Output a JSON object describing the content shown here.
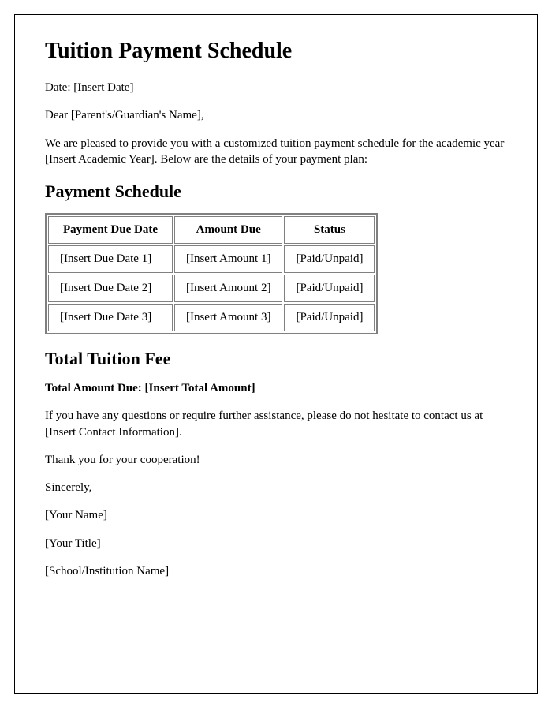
{
  "title": "Tuition Payment Schedule",
  "date_line": "Date: [Insert Date]",
  "salutation": "Dear [Parent's/Guardian's Name],",
  "intro": "We are pleased to provide you with a customized tuition payment schedule for the academic year [Insert Academic Year]. Below are the details of your payment plan:",
  "schedule_heading": "Payment Schedule",
  "table": {
    "columns": [
      "Payment Due Date",
      "Amount Due",
      "Status"
    ],
    "rows": [
      [
        "[Insert Due Date 1]",
        "[Insert Amount 1]",
        "[Paid/Unpaid]"
      ],
      [
        "[Insert Due Date 2]",
        "[Insert Amount 2]",
        "[Paid/Unpaid]"
      ],
      [
        "[Insert Due Date 3]",
        "[Insert Amount 3]",
        "[Paid/Unpaid]"
      ]
    ]
  },
  "total_heading": "Total Tuition Fee",
  "total_line": "Total Amount Due: [Insert Total Amount]",
  "contact_line": "If you have any questions or require further assistance, please do not hesitate to contact us at [Insert Contact Information].",
  "thanks": "Thank you for your cooperation!",
  "signoff": "Sincerely,",
  "sender_name": "[Your Name]",
  "sender_title": "[Your Title]",
  "institution": "[School/Institution Name]"
}
